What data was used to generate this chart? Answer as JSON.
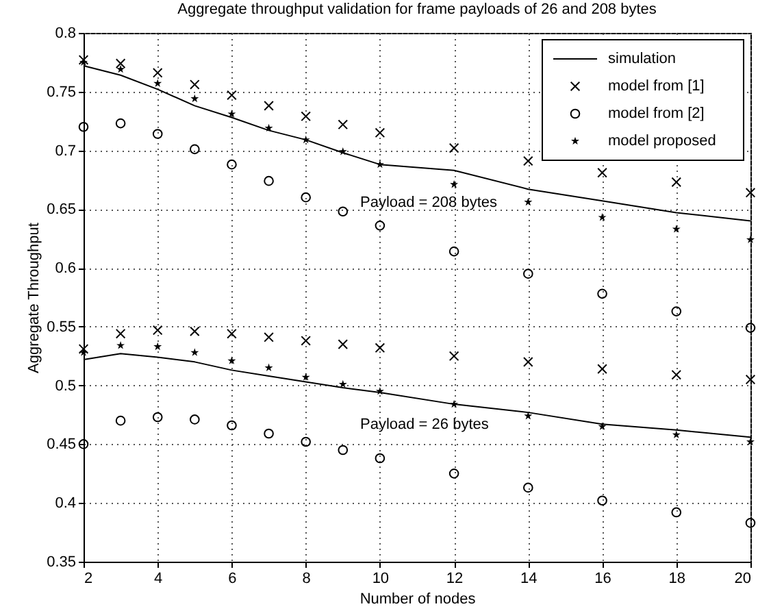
{
  "chart_data": {
    "type": "scatter",
    "title": "Aggregate throughput validation for frame payloads of 26 and 208 bytes",
    "xlabel": "Number of nodes",
    "ylabel": "Aggregate Throughput",
    "x": [
      2,
      3,
      4,
      5,
      6,
      7,
      8,
      9,
      10,
      12,
      14,
      16,
      18,
      20
    ],
    "series": [
      {
        "name": "simulation",
        "type": "line",
        "marker": "none",
        "line_style": "solid",
        "color": "#000000",
        "values": [
          0.772,
          0.764,
          0.752,
          0.738,
          0.728,
          0.717,
          0.709,
          0.698,
          0.688,
          0.683,
          0.667,
          0.657,
          0.647,
          0.64
        ]
      },
      {
        "name": "model from [1]",
        "marker": "cross",
        "color": "#000000",
        "values": [
          0.777,
          0.774,
          0.766,
          0.756,
          0.747,
          0.738,
          0.729,
          0.722,
          0.715,
          0.702,
          0.691,
          0.681,
          0.673,
          0.664
        ]
      },
      {
        "name": "model from [2]",
        "marker": "circle",
        "color": "#000000",
        "values": [
          0.72,
          0.723,
          0.714,
          0.701,
          0.688,
          0.674,
          0.66,
          0.648,
          0.636,
          0.614,
          0.595,
          0.578,
          0.563,
          0.549
        ]
      },
      {
        "name": "model proposed",
        "marker": "star",
        "color": "#000000",
        "values": [
          0.775,
          0.769,
          0.757,
          0.744,
          0.731,
          0.719,
          0.709,
          0.699,
          0.688,
          0.671,
          0.656,
          0.643,
          0.633,
          0.624
        ]
      },
      {
        "type": "line",
        "marker": "none",
        "line_style": "solid",
        "color": "#000000",
        "values": [
          0.522,
          0.527,
          0.524,
          0.52,
          0.513,
          0.508,
          0.503,
          0.498,
          0.494,
          0.484,
          0.477,
          0.467,
          0.462,
          0.456
        ]
      },
      {
        "marker": "cross",
        "color": "#000000",
        "values": [
          0.531,
          0.544,
          0.547,
          0.546,
          0.544,
          0.541,
          0.538,
          0.535,
          0.532,
          0.525,
          0.52,
          0.514,
          0.509,
          0.505
        ]
      },
      {
        "marker": "circle",
        "color": "#000000",
        "values": [
          0.45,
          0.47,
          0.473,
          0.471,
          0.466,
          0.459,
          0.452,
          0.445,
          0.438,
          0.425,
          0.413,
          0.402,
          0.392,
          0.383
        ]
      },
      {
        "marker": "star",
        "color": "#000000",
        "values": [
          0.528,
          0.534,
          0.533,
          0.528,
          0.521,
          0.515,
          0.507,
          0.501,
          0.495,
          0.484,
          0.474,
          0.465,
          0.458,
          0.452
        ]
      }
    ],
    "annotations": [
      "Payload = 208 bytes",
      "Payload = 26 bytes"
    ],
    "xlim": [
      2,
      20
    ],
    "xticks": [
      2,
      4,
      6,
      8,
      10,
      12,
      14,
      16,
      18,
      20
    ],
    "ylim": [
      0.35,
      0.8
    ],
    "yticks": [
      0.35,
      0.4,
      0.45,
      0.5,
      0.55,
      0.6,
      0.65,
      0.7,
      0.75,
      0.8
    ],
    "grid": true,
    "legend": "top right"
  }
}
